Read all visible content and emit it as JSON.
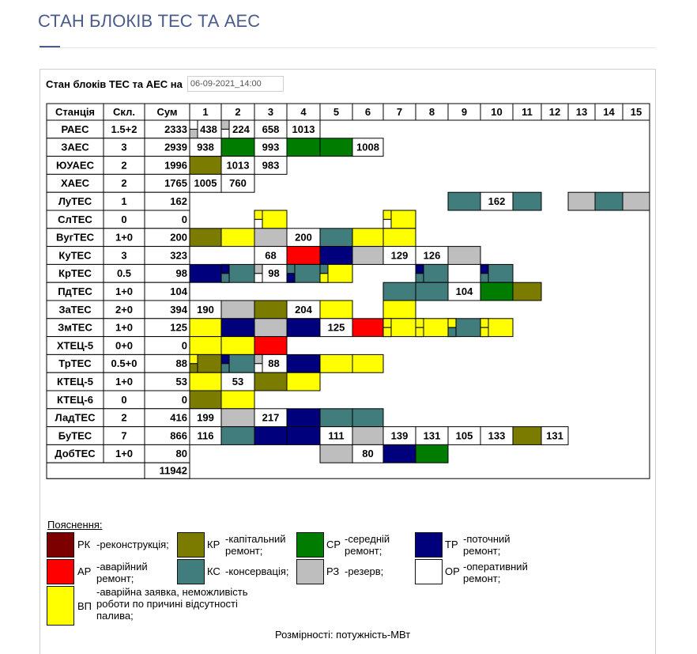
{
  "page_title": "СТАН БЛОКІВ ТЕС ТА АЕС",
  "header": {
    "label": "Стан блоків ТЕС та АЕС на",
    "date_value": "06-09-2021_14:00"
  },
  "table": {
    "col_headers": [
      "Станція",
      "Скл.",
      "Сум",
      "1",
      "2",
      "3",
      "4",
      "5",
      "6",
      "7",
      "8",
      "9",
      "10",
      "11",
      "12",
      "13",
      "14",
      "15"
    ],
    "rows": [
      {
        "station": "РАЕС",
        "skl": "1.5+2",
        "sum": "2333",
        "cells": [
          [
            "B",
            "438",
            "WG"
          ],
          [
            "B",
            "224",
            "GW"
          ],
          [
            "W",
            "658"
          ],
          [
            "W",
            "1013"
          ]
        ]
      },
      {
        "station": "ЗАЕС",
        "skl": "3",
        "sum": "2939",
        "cells": [
          [
            "W",
            "938"
          ],
          [
            "C"
          ],
          [
            "W",
            "993"
          ],
          [
            "C"
          ],
          [
            "C"
          ],
          [
            "W",
            "1008"
          ]
        ]
      },
      {
        "station": "ЮУАЕС",
        "skl": "2",
        "sum": "1996",
        "cells": [
          [
            "K"
          ],
          [
            "W",
            "1013"
          ],
          [
            "W",
            "983"
          ]
        ]
      },
      {
        "station": "ХАЕС",
        "skl": "2",
        "sum": "1765",
        "cells": [
          [
            "W",
            "1005"
          ],
          [
            "W",
            "760"
          ]
        ]
      },
      {
        "station": "ЛуТЕС",
        "skl": "1",
        "sum": "162",
        "cells": [
          null,
          null,
          null,
          null,
          null,
          null,
          null,
          null,
          [
            "T"
          ],
          [
            "W",
            "162"
          ],
          [
            "T"
          ],
          null,
          [
            "G"
          ],
          [
            "T"
          ],
          [
            "G"
          ]
        ]
      },
      {
        "station": "СлТЕС",
        "skl": "0",
        "sum": "0",
        "cells": [
          null,
          null,
          [
            "Y",
            "",
            "YW"
          ],
          null,
          null,
          null,
          [
            "Y",
            "",
            "YW"
          ]
        ]
      },
      {
        "station": "ВугТЕС",
        "skl": "1+0",
        "sum": "200",
        "cells": [
          [
            "K"
          ],
          [
            "Y"
          ],
          [
            "G"
          ],
          [
            "W",
            "200"
          ],
          [
            "T"
          ],
          [
            "Y"
          ],
          [
            "Y"
          ]
        ]
      },
      {
        "station": "КуТЕС",
        "skl": "3",
        "sum": "323",
        "cells": [
          null,
          null,
          [
            "W",
            "68"
          ],
          [
            "R"
          ],
          [
            "N"
          ],
          [
            "G"
          ],
          [
            "W",
            "129"
          ],
          [
            "W",
            "126"
          ],
          [
            "G"
          ]
        ]
      },
      {
        "station": "КрТЕС",
        "skl": "0.5",
        "sum": "98",
        "cells": [
          [
            "N"
          ],
          [
            "T",
            "",
            "NT"
          ],
          [
            "B",
            "98",
            "GW"
          ],
          [
            "T",
            "",
            "TN"
          ],
          [
            "Y",
            "",
            "TY"
          ],
          null,
          null,
          [
            "T",
            "",
            "NT"
          ],
          null,
          [
            "T",
            "",
            "NT"
          ]
        ]
      },
      {
        "station": "ПдТЕС",
        "skl": "1+0",
        "sum": "104",
        "cells": [
          null,
          null,
          null,
          null,
          null,
          null,
          [
            "T"
          ],
          [
            "T"
          ],
          [
            "W",
            "104"
          ],
          [
            "C"
          ],
          [
            "K"
          ]
        ]
      },
      {
        "station": "ЗаТЕС",
        "skl": "2+0",
        "sum": "394",
        "cells": [
          [
            "W",
            "190"
          ],
          [
            "G"
          ],
          [
            "K"
          ],
          [
            "W",
            "204"
          ],
          [
            "Y"
          ],
          null,
          [
            "Y"
          ]
        ]
      },
      {
        "station": "ЗмТЕС",
        "skl": "1+0",
        "sum": "125",
        "cells": [
          [
            "Y"
          ],
          [
            "N"
          ],
          [
            "G"
          ],
          [
            "N"
          ],
          [
            "W",
            "125"
          ],
          [
            "R"
          ],
          [
            "Y",
            "",
            "YY"
          ],
          [
            "Y",
            "",
            "YY"
          ],
          [
            "T",
            "",
            "YT"
          ],
          [
            "Y",
            "",
            "YY"
          ]
        ]
      },
      {
        "station": "ХТЕЦ-5",
        "skl": "0+0",
        "sum": "0",
        "cells": [
          [
            "Y"
          ],
          [
            "Y"
          ],
          [
            "R"
          ]
        ]
      },
      {
        "station": "ТрТЕС",
        "skl": "0.5+0",
        "sum": "88",
        "cells": [
          [
            "K",
            "",
            "YK"
          ],
          [
            "T",
            "",
            "NT"
          ],
          [
            "B",
            "88",
            "GW"
          ],
          [
            "N"
          ],
          [
            "Y"
          ],
          [
            "Y"
          ]
        ]
      },
      {
        "station": "КТЕЦ-5",
        "skl": "1+0",
        "sum": "53",
        "cells": [
          [
            "Y"
          ],
          [
            "W",
            "53"
          ],
          [
            "K"
          ],
          [
            "Y"
          ]
        ]
      },
      {
        "station": "КТЕЦ-6",
        "skl": "0",
        "sum": "0",
        "cells": [
          [
            "K"
          ],
          [
            "Y"
          ]
        ]
      },
      {
        "station": "ЛадТЕС",
        "skl": "2",
        "sum": "416",
        "cells": [
          [
            "W",
            "199"
          ],
          [
            "G"
          ],
          [
            "W",
            "217"
          ],
          [
            "N"
          ],
          [
            "T"
          ],
          [
            "T"
          ]
        ]
      },
      {
        "station": "БуТЕС",
        "skl": "7",
        "sum": "866",
        "cells": [
          [
            "W",
            "116"
          ],
          [
            "T"
          ],
          [
            "N"
          ],
          [
            "N"
          ],
          [
            "W",
            "111"
          ],
          [
            "G"
          ],
          [
            "W",
            "139"
          ],
          [
            "W",
            "131"
          ],
          [
            "W",
            "105"
          ],
          [
            "W",
            "133"
          ],
          [
            "K"
          ],
          [
            "W",
            "131"
          ]
        ]
      },
      {
        "station": "ДобТЕС",
        "skl": "1+0",
        "sum": "80",
        "cells": [
          null,
          null,
          null,
          null,
          [
            "G"
          ],
          [
            "W",
            "80"
          ],
          [
            "N"
          ],
          [
            "C"
          ]
        ]
      }
    ],
    "total": "11942"
  },
  "colors": {
    "K": "#7b7b00",
    "C": "#007d00",
    "N": "#00007d",
    "T": "#427d7d",
    "G": "#bebebe",
    "Y": "#ffff00",
    "R": "#ff0000",
    "W": "#ffffff",
    "M": "#7d0000"
  },
  "legend": {
    "heading": "Пояснення:",
    "items": [
      {
        "color": "#7d0000",
        "code": "РК",
        "desc": "-реконструкція;"
      },
      {
        "color": "#7b7b00",
        "code": "КР",
        "desc": "-капітальний ремонт;"
      },
      {
        "color": "#007d00",
        "code": "СР",
        "desc": "-середній ремонт;"
      },
      {
        "color": "#00007d",
        "code": "ТР",
        "desc": "-поточний ремонт;"
      },
      {
        "color": "#ff0000",
        "code": "АР",
        "desc": "-аварійний ремонт;"
      },
      {
        "color": "#427d7d",
        "code": "КС",
        "desc": "-консервація;"
      },
      {
        "color": "#bebebe",
        "code": "РЗ",
        "desc": "-резерв;"
      },
      {
        "color": "#ffffff",
        "code": "ОР",
        "desc": "-оперативний ремонт;"
      },
      {
        "color": "#ffff00",
        "code": "ВП",
        "desc": "-аварійна заявка, неможливість роботи по причині відсутності палива;"
      }
    ]
  },
  "units_note": "Розмірності: потужність-МВт"
}
